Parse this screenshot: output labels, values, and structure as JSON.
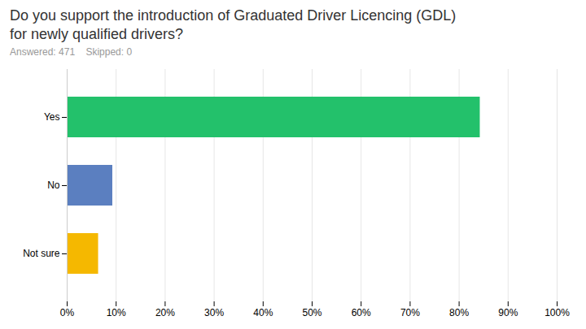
{
  "chart_data": {
    "type": "bar",
    "orientation": "horizontal",
    "title": "Do you support the introduction of Graduated Driver Licencing (GDL)\nfor newly qualified drivers?",
    "subtitle": "Answered: 471    Skipped: 0",
    "categories": [
      "Yes",
      "No",
      "Not sure"
    ],
    "values": [
      84.3,
      9.3,
      6.4
    ],
    "colors": [
      "#23c16b",
      "#5b7fc0",
      "#f5b800"
    ],
    "xlim": [
      0,
      100
    ],
    "xticks": [
      {
        "value": 0,
        "label": "0%"
      },
      {
        "value": 10,
        "label": "10%"
      },
      {
        "value": 20,
        "label": "20%"
      },
      {
        "value": 30,
        "label": "30%"
      },
      {
        "value": 40,
        "label": "40%"
      },
      {
        "value": 50,
        "label": "50%"
      },
      {
        "value": 60,
        "label": "60%"
      },
      {
        "value": 70,
        "label": "70%"
      },
      {
        "value": 80,
        "label": "80%"
      },
      {
        "value": 90,
        "label": "90%"
      },
      {
        "value": 100,
        "label": "100%"
      }
    ],
    "grid": true
  }
}
